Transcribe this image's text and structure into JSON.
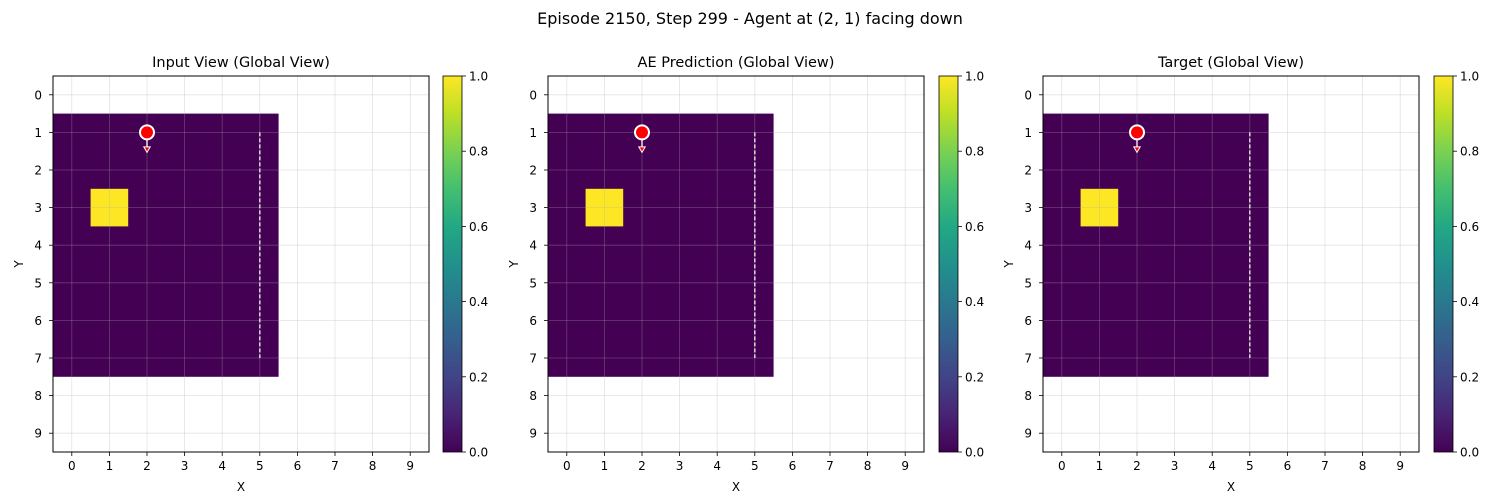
{
  "figure": {
    "suptitle": "Episode 2150, Step 299 - Agent at (2, 1) facing down"
  },
  "chart_data": [
    {
      "type": "heatmap",
      "title": "Input View (Global View)",
      "xlabel": "X",
      "ylabel": "Y",
      "xlim": [
        -0.5,
        9.5
      ],
      "ylim": [
        9.5,
        -0.5
      ],
      "x_ticks": [
        0,
        1,
        2,
        3,
        4,
        5,
        6,
        7,
        8,
        9
      ],
      "y_ticks": [
        0,
        1,
        2,
        3,
        4,
        5,
        6,
        7,
        8,
        9
      ],
      "grid": true,
      "colormap": "viridis",
      "colorbar": {
        "range": [
          0.0,
          1.0
        ],
        "ticks": [
          "0.0",
          "0.2",
          "0.4",
          "0.6",
          "0.8",
          "1.0"
        ]
      },
      "observed_region": {
        "x": [
          0,
          5
        ],
        "y": [
          1,
          7
        ],
        "value": 0.0
      },
      "cells": [
        {
          "x": 1,
          "y": 3,
          "value": 1.0
        }
      ],
      "wall_line": {
        "x": 5,
        "y": [
          1,
          7
        ]
      },
      "agent": {
        "x": 2,
        "y": 1,
        "facing": "down",
        "color": "#ff0000"
      }
    },
    {
      "type": "heatmap",
      "title": "AE Prediction (Global View)",
      "xlabel": "X",
      "ylabel": "Y",
      "xlim": [
        -0.5,
        9.5
      ],
      "ylim": [
        9.5,
        -0.5
      ],
      "x_ticks": [
        0,
        1,
        2,
        3,
        4,
        5,
        6,
        7,
        8,
        9
      ],
      "y_ticks": [
        0,
        1,
        2,
        3,
        4,
        5,
        6,
        7,
        8,
        9
      ],
      "grid": true,
      "colormap": "viridis",
      "colorbar": {
        "range": [
          0.0,
          1.0
        ],
        "ticks": [
          "0.0",
          "0.2",
          "0.4",
          "0.6",
          "0.8",
          "1.0"
        ]
      },
      "observed_region": {
        "x": [
          0,
          5
        ],
        "y": [
          1,
          7
        ],
        "value": 0.0
      },
      "cells": [
        {
          "x": 1,
          "y": 3,
          "value": 1.0
        }
      ],
      "wall_line": {
        "x": 5,
        "y": [
          1,
          7
        ]
      },
      "agent": {
        "x": 2,
        "y": 1,
        "facing": "down",
        "color": "#ff0000"
      }
    },
    {
      "type": "heatmap",
      "title": "Target (Global View)",
      "xlabel": "X",
      "ylabel": "Y",
      "xlim": [
        -0.5,
        9.5
      ],
      "ylim": [
        9.5,
        -0.5
      ],
      "x_ticks": [
        0,
        1,
        2,
        3,
        4,
        5,
        6,
        7,
        8,
        9
      ],
      "y_ticks": [
        0,
        1,
        2,
        3,
        4,
        5,
        6,
        7,
        8,
        9
      ],
      "grid": true,
      "colormap": "viridis",
      "colorbar": {
        "range": [
          0.0,
          1.0
        ],
        "ticks": [
          "0.0",
          "0.2",
          "0.4",
          "0.6",
          "0.8",
          "1.0"
        ]
      },
      "observed_region": {
        "x": [
          0,
          5
        ],
        "y": [
          1,
          7
        ],
        "value": 0.0
      },
      "cells": [
        {
          "x": 1,
          "y": 3,
          "value": 1.0
        }
      ],
      "wall_line": {
        "x": 5,
        "y": [
          1,
          7
        ]
      },
      "agent": {
        "x": 2,
        "y": 1,
        "facing": "down",
        "color": "#ff0000"
      }
    }
  ]
}
